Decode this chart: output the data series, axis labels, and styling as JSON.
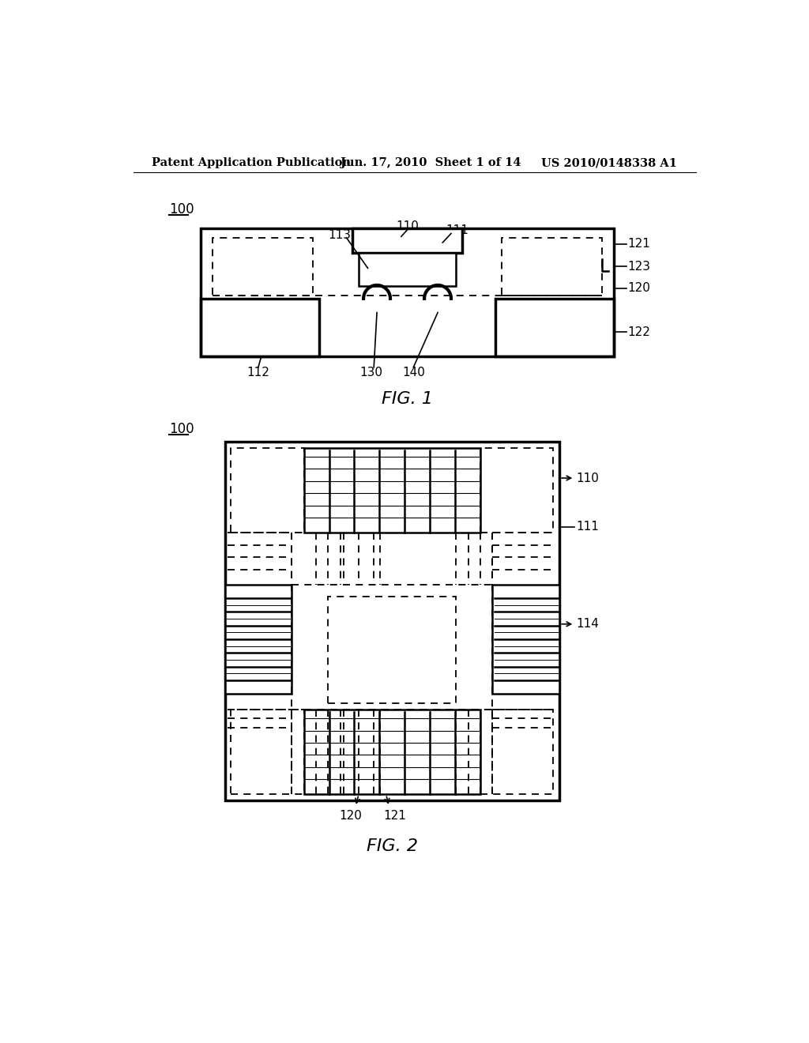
{
  "bg_color": "#ffffff",
  "header_left": "Patent Application Publication",
  "header_mid": "Jun. 17, 2010  Sheet 1 of 14",
  "header_right": "US 2010/0148338 A1",
  "fig1_label": "FIG. 1",
  "fig2_label": "FIG. 2"
}
